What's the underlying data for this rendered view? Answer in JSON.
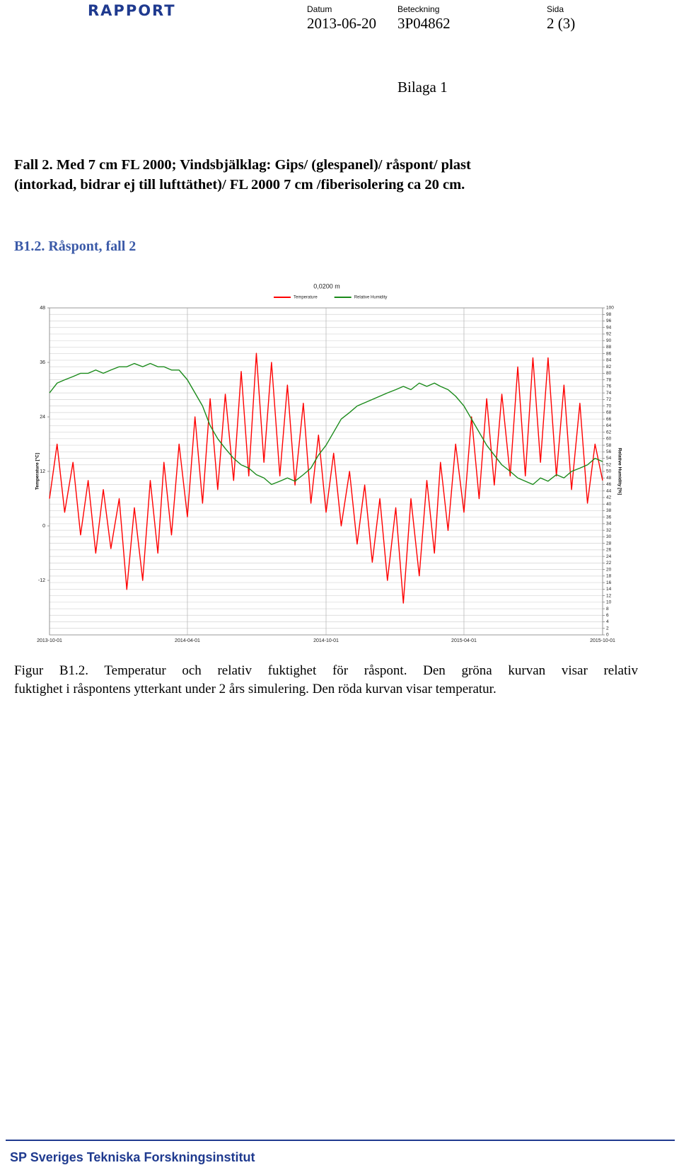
{
  "header": {
    "logo": "RAPPORT",
    "fields": [
      {
        "label": "Datum",
        "value": "2013-06-20"
      },
      {
        "label": "Beteckning",
        "value": "3P04862"
      },
      {
        "label": "Sida",
        "value": "2 (3)"
      }
    ]
  },
  "appendix": "Bilaga 1",
  "heading_lines": [
    "Fall 2. Med 7 cm FL 2000; Vindsbjälklag: Gips/ (glespanel)/ råspont/ plast",
    "(intorkad, bidrar ej till lufttäthet)/ FL 2000 7 cm /fiberisolering ca 20 cm."
  ],
  "subheading": "B1.2. Råspont, fall 2",
  "chart_data": {
    "type": "line",
    "title": "0,0200 m",
    "y_label": "Temperature [°C]",
    "y2_label": "Relative Humidity [%]",
    "x": [
      "2013-10-01",
      "2013-10-11",
      "2013-10-21",
      "2013-11-01",
      "2013-11-11",
      "2013-11-21",
      "2013-12-01",
      "2013-12-11",
      "2013-12-21",
      "2014-01-01",
      "2014-01-11",
      "2014-01-21",
      "2014-02-01",
      "2014-02-11",
      "2014-02-21",
      "2014-03-01",
      "2014-03-11",
      "2014-03-21",
      "2014-04-01",
      "2014-04-11",
      "2014-04-21",
      "2014-05-01",
      "2014-05-11",
      "2014-05-21",
      "2014-06-01",
      "2014-06-11",
      "2014-06-21",
      "2014-07-01",
      "2014-07-11",
      "2014-07-21",
      "2014-08-01",
      "2014-08-11",
      "2014-08-21",
      "2014-09-01",
      "2014-09-11",
      "2014-09-21",
      "2014-10-01",
      "2014-10-11",
      "2014-10-21",
      "2014-11-01",
      "2014-11-11",
      "2014-11-21",
      "2014-12-01",
      "2014-12-11",
      "2014-12-21",
      "2015-01-01",
      "2015-01-11",
      "2015-01-21",
      "2015-02-01",
      "2015-02-11",
      "2015-02-21",
      "2015-03-01",
      "2015-03-11",
      "2015-03-21",
      "2015-04-01",
      "2015-04-11",
      "2015-04-21",
      "2015-05-01",
      "2015-05-11",
      "2015-05-21",
      "2015-06-01",
      "2015-06-11",
      "2015-06-21",
      "2015-07-01",
      "2015-07-11",
      "2015-07-21",
      "2015-08-01",
      "2015-08-11",
      "2015-08-21",
      "2015-09-01",
      "2015-09-11",
      "2015-09-21",
      "2015-10-01"
    ],
    "series": [
      {
        "name": "Temperature",
        "color": "#ff0000",
        "axis": "y",
        "values": [
          6,
          18,
          3,
          14,
          -2,
          10,
          -6,
          8,
          -5,
          6,
          -14,
          4,
          -12,
          10,
          -6,
          14,
          -2,
          18,
          2,
          24,
          5,
          28,
          8,
          29,
          10,
          34,
          11,
          38,
          14,
          36,
          11,
          31,
          9,
          27,
          5,
          20,
          3,
          16,
          0,
          12,
          -4,
          9,
          -8,
          6,
          -12,
          4,
          -17,
          6,
          -11,
          10,
          -6,
          14,
          -1,
          18,
          3,
          24,
          6,
          28,
          9,
          29,
          11,
          35,
          11,
          37,
          14,
          37,
          11,
          31,
          8,
          27,
          5,
          18,
          10
        ]
      },
      {
        "name": "Relative Humidity",
        "color": "#1a8a1a",
        "axis": "y2",
        "values": [
          74,
          77,
          78,
          79,
          80,
          80,
          81,
          80,
          81,
          82,
          82,
          83,
          82,
          83,
          82,
          82,
          81,
          81,
          78,
          74,
          70,
          64,
          60,
          57,
          54,
          52,
          51,
          49,
          48,
          46,
          47,
          48,
          47,
          49,
          51,
          55,
          58,
          62,
          66,
          68,
          70,
          71,
          72,
          73,
          74,
          75,
          76,
          75,
          77,
          76,
          77,
          76,
          75,
          73,
          70,
          66,
          62,
          58,
          55,
          52,
          50,
          48,
          47,
          46,
          48,
          47,
          49,
          48,
          50,
          51,
          52,
          54,
          53
        ]
      }
    ],
    "xlim": [
      "2013-10-01",
      "2015-10-01"
    ],
    "xticks": [
      "2013-10-01",
      "2014-04-01",
      "2014-10-01",
      "2015-04-01",
      "2015-10-01"
    ],
    "ylim": [
      -24,
      48
    ],
    "yticks": [
      -12,
      0,
      12,
      24,
      36,
      48
    ],
    "y2lim": [
      0,
      100
    ],
    "y2ticks": [
      0,
      2,
      4,
      6,
      8,
      10,
      12,
      14,
      16,
      18,
      20,
      22,
      24,
      26,
      28,
      30,
      32,
      34,
      36,
      38,
      40,
      42,
      44,
      46,
      48,
      50,
      52,
      54,
      56,
      58,
      60,
      62,
      64,
      66,
      68,
      70,
      72,
      74,
      76,
      78,
      80,
      82,
      84,
      86,
      88,
      90,
      92,
      94,
      96,
      98,
      100
    ],
    "grid": true,
    "legend": "top"
  },
  "caption_lines": [
    "Figur B1.2. Temperatur och relativ fuktighet för råspont. Den gröna kurvan visar relativ",
    "fuktighet i råspontens ytterkant under 2 års simulering. Den röda kurvan visar temperatur."
  ],
  "footer": "SP Sveriges Tekniska Forskningsinstitut"
}
